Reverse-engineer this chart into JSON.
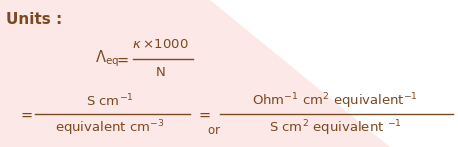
{
  "bg_color": "#fde8e8",
  "white_color": "#ffffff",
  "text_color": "#7a4a20",
  "title_text": "Units :",
  "figsize": [
    4.58,
    1.47
  ],
  "dpi": 100,
  "title_fontsize": 11,
  "fs": 9.5
}
